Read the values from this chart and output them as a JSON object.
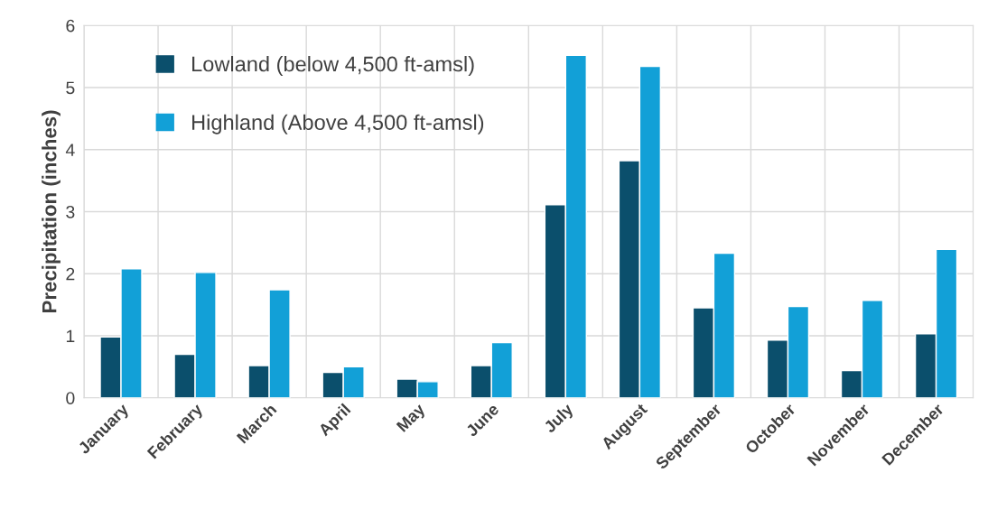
{
  "chart_data": {
    "type": "bar",
    "ylabel": "Precipitation (inches)",
    "categories": [
      "January",
      "February",
      "March",
      "April",
      "May",
      "June",
      "July",
      "August",
      "September",
      "October",
      "November",
      "December"
    ],
    "series": [
      {
        "name": "Lowland (below 4,500 ft-amsl)",
        "color": "#0b4f6c",
        "values": [
          0.98,
          0.7,
          0.52,
          0.41,
          0.3,
          0.52,
          3.11,
          3.82,
          1.45,
          0.93,
          0.44,
          1.03
        ]
      },
      {
        "name": "Highland (Above 4,500 ft-amsl)",
        "color": "#12a0d7",
        "values": [
          2.08,
          2.02,
          1.74,
          0.5,
          0.26,
          0.89,
          5.52,
          5.34,
          2.33,
          1.47,
          1.57,
          2.39
        ]
      }
    ],
    "ylim": [
      0,
      6
    ],
    "yticks": [
      0,
      1,
      2,
      3,
      4,
      5,
      6
    ],
    "grid": true,
    "legend": "top left"
  }
}
